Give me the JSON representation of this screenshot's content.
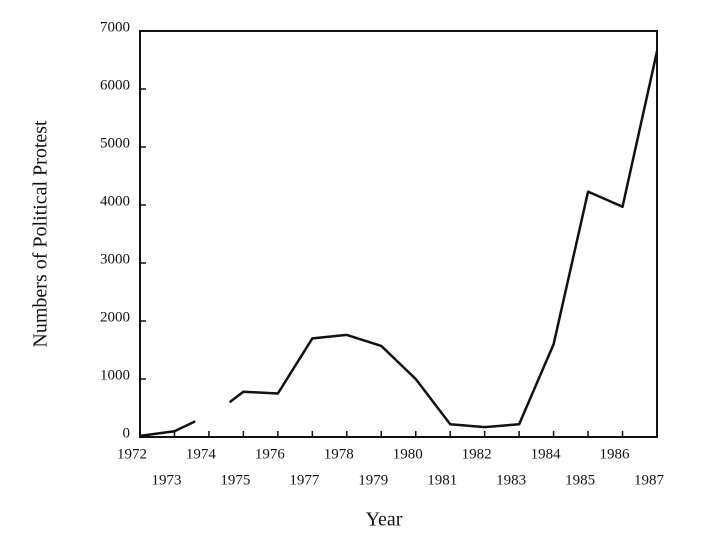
{
  "chart_data": {
    "type": "line",
    "x_label": "Year",
    "y_label": "Numbers of Political Protest",
    "x": [
      1972,
      1973,
      1973.6,
      1974,
      1974.6,
      1975,
      1976,
      1977,
      1978,
      1979,
      1980,
      1981,
      1982,
      1983,
      1984,
      1985,
      1986,
      1987
    ],
    "series": [
      {
        "color": "#111111",
        "values": [
          20,
          100,
          270,
          null,
          600,
          780,
          750,
          1700,
          1760,
          1570,
          1000,
          220,
          170,
          220,
          1600,
          4230,
          3970,
          6650
        ]
      }
    ],
    "xlim": [
      1972,
      1987
    ],
    "xticks": [
      1972,
      1973,
      1974,
      1975,
      1976,
      1977,
      1978,
      1979,
      1980,
      1981,
      1982,
      1983,
      1984,
      1985,
      1986,
      1987
    ],
    "ylim": [
      0,
      7000
    ],
    "yticks": [
      0,
      1000,
      2000,
      3000,
      4000,
      5000,
      6000,
      7000
    ]
  }
}
